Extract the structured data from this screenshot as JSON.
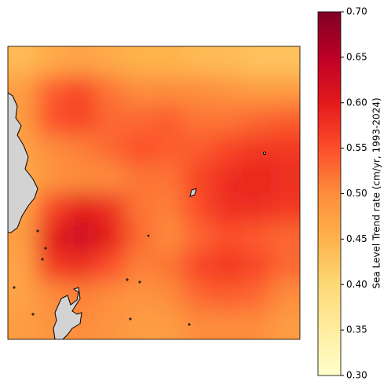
{
  "chart_data": {
    "type": "heatmap",
    "colorbar_label": "Sea Level Trend rate (cm/yr, 1993-2024)",
    "clim": [
      0.3,
      0.7
    ],
    "cticks": [
      0.3,
      0.35,
      0.4,
      0.45,
      0.5,
      0.55,
      0.6,
      0.65,
      0.7
    ],
    "colormap": [
      "#ffffcc",
      "#ffeda0",
      "#fed976",
      "#feb24c",
      "#fd8d3c",
      "#fc4e2a",
      "#e31a1c",
      "#bd0026",
      "#800026"
    ],
    "land_color": "#d3d3d3",
    "values": [
      [
        0.44,
        0.46,
        0.47,
        0.46,
        0.45,
        0.45,
        0.44,
        0.44,
        0.43,
        0.43
      ],
      [
        0.48,
        0.54,
        0.56,
        0.52,
        0.5,
        0.5,
        0.5,
        0.49,
        0.48,
        0.48
      ],
      [
        0.48,
        0.55,
        0.56,
        0.53,
        0.53,
        0.54,
        0.52,
        0.52,
        0.53,
        0.54
      ],
      [
        0.47,
        0.5,
        0.51,
        0.53,
        0.55,
        0.54,
        0.54,
        0.56,
        0.57,
        0.57
      ],
      [
        0.46,
        0.49,
        0.5,
        0.5,
        0.52,
        0.52,
        0.56,
        0.58,
        0.59,
        0.58
      ],
      [
        0.47,
        0.56,
        0.6,
        0.58,
        0.52,
        0.51,
        0.55,
        0.58,
        0.58,
        0.57
      ],
      [
        0.48,
        0.6,
        0.63,
        0.6,
        0.53,
        0.5,
        0.53,
        0.55,
        0.54,
        0.53
      ],
      [
        0.47,
        0.57,
        0.58,
        0.55,
        0.51,
        0.52,
        0.56,
        0.57,
        0.56,
        0.53
      ],
      [
        0.47,
        0.5,
        0.51,
        0.5,
        0.49,
        0.5,
        0.53,
        0.54,
        0.53,
        0.5
      ],
      [
        0.48,
        0.49,
        0.5,
        0.49,
        0.48,
        0.48,
        0.5,
        0.5,
        0.5,
        0.48
      ]
    ]
  }
}
